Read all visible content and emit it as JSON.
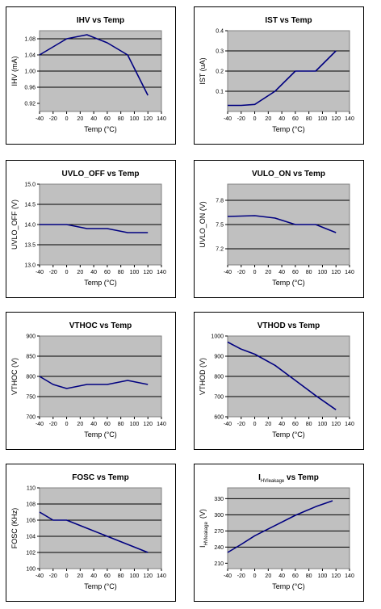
{
  "chart_data": [
    {
      "type": "line",
      "title": "IHV vs Temp",
      "xlabel": "Temp (°C)",
      "ylabel": "IHV (mA)",
      "xlim": [
        -40,
        140
      ],
      "ylim": [
        0.9,
        1.1
      ],
      "xticks": [
        -40,
        -20,
        0,
        20,
        40,
        60,
        80,
        100,
        120,
        140
      ],
      "xtick_labels": [
        "-40",
        "-20",
        "0",
        "20",
        "40",
        "60",
        "80",
        "100",
        "120",
        "140"
      ],
      "yticks": [
        0.92,
        0.96,
        1.0,
        1.04,
        1.08
      ],
      "ytick_labels": [
        "0.92",
        "0.96",
        "1.00",
        "1.04",
        "1.08"
      ],
      "grid_lines": [
        0.96,
        1.0,
        1.04,
        1.08
      ],
      "grid": true,
      "series": [
        {
          "x": [
            -40,
            0,
            30,
            60,
            90,
            120
          ],
          "y": [
            1.04,
            1.08,
            1.09,
            1.07,
            1.04,
            0.94
          ]
        }
      ]
    },
    {
      "type": "line",
      "title": "IST vs Temp",
      "xlabel": "Temp (°C)",
      "ylabel": "IST (uA)",
      "xlim": [
        -40,
        140
      ],
      "ylim": [
        0,
        0.4
      ],
      "xticks": [
        -40,
        -20,
        0,
        20,
        40,
        60,
        80,
        100,
        120,
        140
      ],
      "xtick_labels": [
        "-40",
        "-20",
        "0",
        "20",
        "40",
        "60",
        "80",
        "100",
        "120",
        "140"
      ],
      "yticks": [
        0.1,
        0.2,
        0.3,
        0.4
      ],
      "ytick_labels": [
        "0.1",
        "0.2",
        "0.3",
        "0.4"
      ],
      "grid_lines": [
        0.1,
        0.2,
        0.3
      ],
      "grid": true,
      "series": [
        {
          "x": [
            -40,
            -20,
            0,
            30,
            60,
            90,
            120
          ],
          "y": [
            0.03,
            0.03,
            0.035,
            0.1,
            0.2,
            0.2,
            0.3
          ]
        }
      ]
    },
    {
      "type": "line",
      "title": "UVLO_OFF vs Temp",
      "xlabel": "Temp (°C)",
      "ylabel": "UVLO_OFF (V)",
      "xlim": [
        -40,
        140
      ],
      "ylim": [
        13.0,
        15.0
      ],
      "xticks": [
        -40,
        -20,
        0,
        20,
        40,
        60,
        80,
        100,
        120,
        140
      ],
      "xtick_labels": [
        "-40",
        "-20",
        "0",
        "20",
        "40",
        "60",
        "80",
        "100",
        "120",
        "140"
      ],
      "yticks": [
        13.0,
        13.5,
        14.0,
        14.5,
        15.0
      ],
      "ytick_labels": [
        "13.0",
        "13.5",
        "14.0",
        "14.5",
        "15.0"
      ],
      "grid_lines": [
        13.5,
        14.0,
        14.5
      ],
      "grid": true,
      "series": [
        {
          "x": [
            -40,
            0,
            30,
            60,
            90,
            120
          ],
          "y": [
            14.0,
            14.0,
            13.9,
            13.9,
            13.8,
            13.8
          ]
        }
      ]
    },
    {
      "type": "line",
      "title": "VULO_ON vs Temp",
      "xlabel": "Temp (°C)",
      "ylabel": "UVLO_ON (V)",
      "xlim": [
        -40,
        140
      ],
      "ylim": [
        7.0,
        8.0
      ],
      "xticks": [
        -40,
        -20,
        0,
        20,
        40,
        60,
        80,
        100,
        120,
        140
      ],
      "xtick_labels": [
        "-40",
        "-20",
        "0",
        "20",
        "40",
        "60",
        "80",
        "100",
        "120",
        "140"
      ],
      "yticks": [
        7.2,
        7.5,
        7.8
      ],
      "ytick_labels": [
        "7.2",
        "7.5",
        "7.8"
      ],
      "grid_lines": [
        7.2,
        7.5,
        7.8
      ],
      "grid": true,
      "series": [
        {
          "x": [
            -40,
            0,
            30,
            60,
            90,
            120
          ],
          "y": [
            7.6,
            7.61,
            7.58,
            7.5,
            7.5,
            7.4
          ]
        }
      ]
    },
    {
      "type": "line",
      "title": "VTHOC vs Temp",
      "xlabel": "Temp (°C)",
      "ylabel": "VTHOC (V)",
      "xlim": [
        -40,
        140
      ],
      "ylim": [
        700,
        900
      ],
      "xticks": [
        -40,
        -20,
        0,
        20,
        40,
        60,
        80,
        100,
        120,
        140
      ],
      "xtick_labels": [
        "-40",
        "-20",
        "0",
        "20",
        "40",
        "60",
        "80",
        "100",
        "120",
        "140"
      ],
      "yticks": [
        700,
        750,
        800,
        850,
        900
      ],
      "ytick_labels": [
        "700",
        "750",
        "800",
        "850",
        "900"
      ],
      "grid_lines": [
        750,
        800,
        850
      ],
      "grid": true,
      "series": [
        {
          "x": [
            -40,
            -20,
            0,
            30,
            60,
            90,
            120
          ],
          "y": [
            800,
            780,
            770,
            780,
            780,
            790,
            780
          ]
        }
      ]
    },
    {
      "type": "line",
      "title": "VTHOD vs Temp",
      "xlabel": "Temp (°C)",
      "ylabel": "VTHOD (V)",
      "xlim": [
        -40,
        140
      ],
      "ylim": [
        600,
        1000
      ],
      "xticks": [
        -40,
        -20,
        0,
        20,
        40,
        60,
        80,
        100,
        120,
        140
      ],
      "xtick_labels": [
        "-40",
        "-20",
        "0",
        "20",
        "40",
        "60",
        "80",
        "100",
        "120",
        "140"
      ],
      "yticks": [
        600,
        700,
        800,
        900,
        1000
      ],
      "ytick_labels": [
        "600",
        "700",
        "800",
        "900",
        "1000"
      ],
      "grid_lines": [
        700,
        800,
        900
      ],
      "grid": true,
      "series": [
        {
          "x": [
            -40,
            -20,
            0,
            30,
            60,
            90,
            120
          ],
          "y": [
            970,
            935,
            910,
            855,
            780,
            705,
            635
          ]
        }
      ]
    },
    {
      "type": "line",
      "title": "FOSC vs Temp",
      "xlabel": "Temp (°C)",
      "ylabel": "FOSC (KHz)",
      "xlim": [
        -40,
        140
      ],
      "ylim": [
        100,
        110
      ],
      "xticks": [
        -40,
        -20,
        0,
        20,
        40,
        60,
        80,
        100,
        120,
        140
      ],
      "xtick_labels": [
        "-40",
        "-20",
        "0",
        "20",
        "40",
        "60",
        "80",
        "100",
        "120",
        "140"
      ],
      "yticks": [
        100,
        102,
        104,
        106,
        108,
        110
      ],
      "ytick_labels": [
        "100",
        "102",
        "104",
        "106",
        "108",
        "110"
      ],
      "grid_lines": [
        102,
        104,
        106,
        108
      ],
      "grid": true,
      "series": [
        {
          "x": [
            -40,
            -20,
            0,
            30,
            60,
            90,
            120
          ],
          "y": [
            107,
            106,
            106,
            105,
            104,
            103,
            102
          ]
        }
      ]
    },
    {
      "type": "line",
      "title_main": "I",
      "title_sub": "HVleakage",
      "title_rest": " vs Temp",
      "xlabel": "Temp (°C)",
      "ylabel_main": "I",
      "ylabel_sub": "HVleakage",
      "ylabel_rest": "(V)",
      "xlim": [
        -40,
        140
      ],
      "ylim": [
        200,
        350
      ],
      "xticks": [
        -40,
        -20,
        0,
        20,
        40,
        60,
        80,
        100,
        120,
        140
      ],
      "xtick_labels": [
        "-40",
        "-20",
        "0",
        "20",
        "40",
        "60",
        "80",
        "100",
        "120",
        "140"
      ],
      "yticks": [
        210,
        240,
        270,
        300,
        330
      ],
      "ytick_labels": [
        "210",
        "240",
        "270",
        "300",
        "330"
      ],
      "grid_lines": [
        240,
        270,
        300,
        330
      ],
      "grid": true,
      "series": [
        {
          "x": [
            -40,
            -20,
            0,
            30,
            60,
            90,
            115
          ],
          "y": [
            230,
            245,
            261,
            280,
            299,
            315,
            326
          ]
        }
      ]
    }
  ]
}
